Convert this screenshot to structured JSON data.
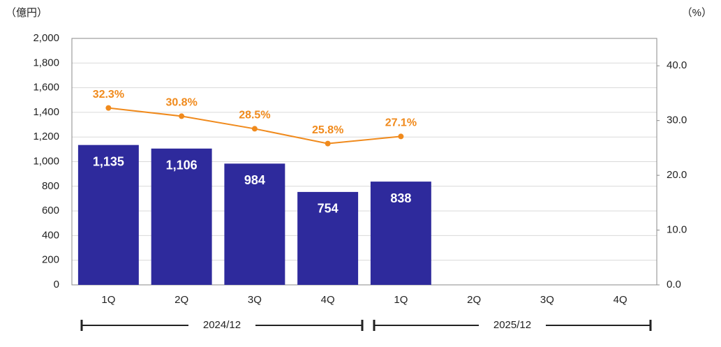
{
  "chart_data": {
    "type": "bar",
    "y_label": "（億円）",
    "y2_label": "（%）",
    "categories": [
      "1Q",
      "2Q",
      "3Q",
      "4Q",
      "1Q",
      "2Q",
      "3Q",
      "4Q"
    ],
    "groups": [
      "2024/12",
      "2025/12"
    ],
    "series": [
      {
        "type": "bar",
        "color": "#2e2a9c",
        "values": [
          1135,
          1106,
          984,
          754,
          838,
          null,
          null,
          null
        ],
        "value_labels": [
          "1,135",
          "1,106",
          "984",
          "754",
          "838",
          null,
          null,
          null
        ]
      },
      {
        "type": "line",
        "axis": "y2",
        "color": "#f08a1c",
        "values": [
          32.3,
          30.8,
          28.5,
          25.8,
          27.1,
          null,
          null,
          null
        ],
        "value_labels": [
          "32.3%",
          "30.8%",
          "28.5%",
          "25.8%",
          "27.1%",
          null,
          null,
          null
        ]
      }
    ],
    "ylim": [
      0,
      2000
    ],
    "yticks": [
      0,
      200,
      400,
      600,
      800,
      {
        "value": 1000,
        "label": "1,000"
      },
      {
        "value": 1200,
        "label": "1,200"
      },
      {
        "value": 1400,
        "label": "1,400"
      },
      {
        "value": 1600,
        "label": "1,600"
      },
      {
        "value": 1800,
        "label": "1,800"
      },
      {
        "value": 2000,
        "label": "2,000"
      }
    ],
    "y2lim": [
      0,
      45
    ],
    "y2ticks": [
      {
        "value": 0,
        "label": "0.0"
      },
      {
        "value": 10,
        "label": "10.0"
      },
      {
        "value": 20,
        "label": "20.0"
      },
      {
        "value": 30,
        "label": "30.0"
      },
      {
        "value": 40,
        "label": "40.0"
      }
    ],
    "grid": true
  }
}
